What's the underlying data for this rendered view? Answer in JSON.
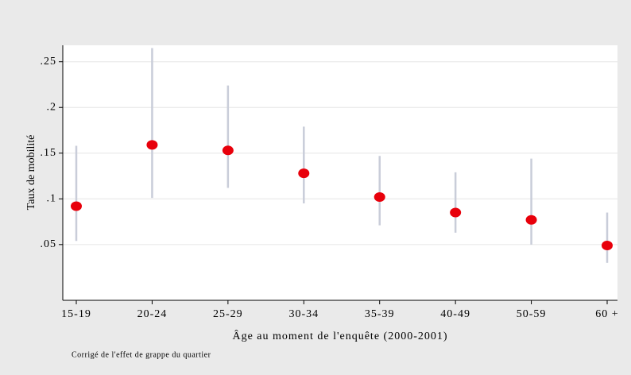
{
  "chart_data": {
    "type": "errorbar",
    "x_label": "Âge au moment de l'enquête (2000-2001)",
    "y_label": "Taux de mobilité",
    "note": "Corrigé de l'effet de grappe du quartier",
    "categories": [
      "15-19",
      "20-24",
      "25-29",
      "30-34",
      "35-39",
      "40-49",
      "50-59",
      "60 +"
    ],
    "values": [
      0.092,
      0.159,
      0.153,
      0.128,
      0.102,
      0.085,
      0.077,
      0.049
    ],
    "ci_low": [
      0.054,
      0.101,
      0.112,
      0.095,
      0.071,
      0.063,
      0.05,
      0.03
    ],
    "ci_high": [
      0.158,
      0.265,
      0.224,
      0.179,
      0.147,
      0.129,
      0.144,
      0.085
    ],
    "color": "#e8000b",
    "ci_color": "#c9cdd9",
    "ylim": [
      -0.011,
      0.268
    ],
    "yticks": [
      {
        "value": 0.05,
        "label": ".05"
      },
      {
        "value": 0.1,
        "label": ".1"
      },
      {
        "value": 0.15,
        "label": ".15"
      },
      {
        "value": 0.2,
        "label": ".2"
      },
      {
        "value": 0.25,
        "label": ".25"
      }
    ],
    "grid": true
  }
}
